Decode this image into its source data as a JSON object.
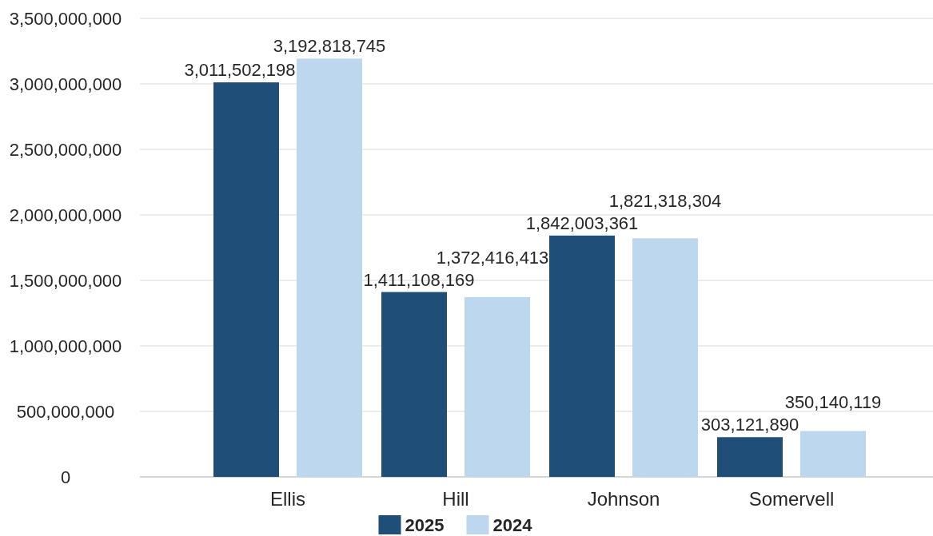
{
  "chart_data": {
    "type": "bar",
    "categories": [
      "Ellis",
      "Hill",
      "Johnson",
      "Somervell"
    ],
    "series": [
      {
        "name": "2025",
        "color": "#1f4e79",
        "values": [
          3011502198,
          1411108169,
          1842003361,
          303121890
        ],
        "value_labels": [
          "3,011,502,198",
          "1,411,108,169",
          "1,842,003,361",
          "303,121,890"
        ]
      },
      {
        "name": "2024",
        "color": "#bdd7ee",
        "values": [
          3192818745,
          1372416413,
          1821318304,
          350140119
        ],
        "value_labels": [
          "3,192,818,745",
          "1,372,416,413",
          "1,821,318,304",
          "350,140,119"
        ]
      }
    ],
    "ylim": [
      0,
      3500000000
    ],
    "yticks": [
      {
        "value": 0,
        "label": "0"
      },
      {
        "value": 500000000,
        "label": "500,000,000"
      },
      {
        "value": 1000000000,
        "label": "1,000,000,000"
      },
      {
        "value": 1500000000,
        "label": "1,500,000,000"
      },
      {
        "value": 2000000000,
        "label": "2,000,000,000"
      },
      {
        "value": 2500000000,
        "label": "2,500,000,000"
      },
      {
        "value": 3000000000,
        "label": "3,000,000,000"
      },
      {
        "value": 3500000000,
        "label": "3,500,000,000"
      }
    ],
    "grid": "y",
    "legend": "bottom"
  }
}
